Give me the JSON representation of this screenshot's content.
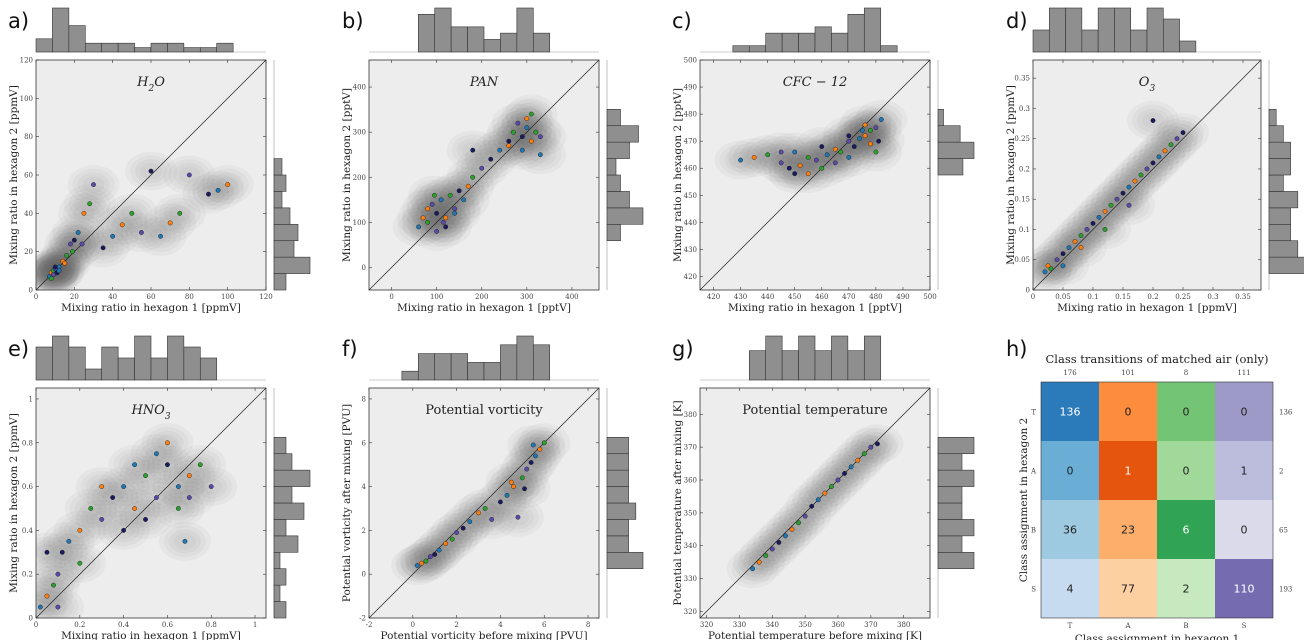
{
  "figure": {
    "panel_letters": [
      "a)",
      "b)",
      "c)",
      "d)",
      "e)",
      "f)",
      "g)",
      "h)"
    ]
  },
  "chart_data": [
    {
      "type": "scatter",
      "panel": "a)",
      "title": "H2O",
      "title_style": "italic-math",
      "xlabel": "Mixing ratio in hexagon 1 [ppmV]",
      "ylabel": "Mixing ratio in hexagon 2 [ppmV]",
      "xlim": [
        0,
        120
      ],
      "ylim": [
        0,
        120
      ],
      "xticks": [
        0,
        20,
        40,
        60,
        80,
        100,
        120
      ],
      "yticks": [
        0,
        20,
        40,
        60,
        80,
        100,
        120
      ],
      "x": [
        7,
        8,
        9,
        10,
        11,
        12,
        14,
        16,
        18,
        20,
        22,
        25,
        28,
        30,
        35,
        40,
        45,
        50,
        55,
        60,
        65,
        70,
        75,
        80,
        90,
        95,
        100,
        8,
        9,
        10,
        12,
        15,
        19,
        24
      ],
      "y": [
        7,
        9,
        10,
        11,
        9,
        12,
        15,
        18,
        24,
        26,
        30,
        40,
        45,
        55,
        22,
        28,
        34,
        40,
        30,
        62,
        28,
        35,
        40,
        60,
        50,
        52,
        55,
        6,
        8,
        12,
        10,
        14,
        20,
        24
      ]
    },
    {
      "type": "scatter",
      "panel": "b)",
      "title": "PAN",
      "title_style": "italic-math",
      "xlabel": "Mixing ratio in hexagon 1 [pptV]",
      "ylabel": "Mixing ratio in hexagon 2 [pptV]",
      "xlim": [
        -50,
        460
      ],
      "ylim": [
        -50,
        460
      ],
      "xticks": [
        0,
        100,
        200,
        300,
        400
      ],
      "yticks": [
        0,
        100,
        200,
        300,
        400
      ],
      "x": [
        60,
        70,
        80,
        90,
        100,
        110,
        120,
        130,
        140,
        150,
        160,
        170,
        180,
        200,
        220,
        240,
        260,
        270,
        280,
        290,
        300,
        310,
        320,
        330,
        260,
        290,
        300,
        310,
        100,
        120,
        140,
        80,
        95,
        115,
        180,
        330
      ],
      "y": [
        90,
        110,
        100,
        140,
        120,
        150,
        110,
        160,
        130,
        170,
        150,
        180,
        200,
        220,
        240,
        260,
        270,
        300,
        320,
        290,
        310,
        280,
        300,
        290,
        280,
        260,
        330,
        340,
        80,
        90,
        120,
        130,
        160,
        100,
        260,
        250
      ]
    },
    {
      "type": "scatter",
      "panel": "c)",
      "title": "CFC − 12",
      "title_style": "italic-math",
      "xlabel": "Mixing ratio in hexagon 1 [pptV]",
      "ylabel": "Mixing ratio in hexagon 2 [pptV]",
      "xlim": [
        415,
        500
      ],
      "ylim": [
        415,
        500
      ],
      "xticks": [
        420,
        430,
        440,
        450,
        460,
        470,
        480,
        490,
        500
      ],
      "yticks": [
        420,
        430,
        440,
        450,
        460,
        470,
        480,
        490,
        500
      ],
      "x": [
        430,
        435,
        440,
        445,
        448,
        450,
        452,
        455,
        458,
        460,
        462,
        465,
        467,
        470,
        472,
        474,
        476,
        478,
        480,
        481,
        482,
        455,
        460,
        465,
        470,
        475,
        478,
        480,
        445,
        450,
        470,
        476
      ],
      "y": [
        463,
        464,
        465,
        462,
        460,
        466,
        461,
        464,
        463,
        468,
        465,
        467,
        466,
        470,
        468,
        471,
        472,
        474,
        475,
        470,
        478,
        458,
        460,
        462,
        472,
        474,
        469,
        466,
        466,
        458,
        464,
        476
      ]
    },
    {
      "type": "scatter",
      "panel": "d)",
      "title": "O3",
      "title_style": "italic-math",
      "xlabel": "Mixing ratio in hexagon 1 [ppmV]",
      "ylabel": "Mixing ratio in hexagon 2 [ppmV]",
      "xlim": [
        0,
        0.38
      ],
      "ylim": [
        0,
        0.38
      ],
      "xticks": [
        0.0,
        0.05,
        0.1,
        0.15,
        0.2,
        0.25,
        0.3,
        0.35
      ],
      "yticks": [
        0.0,
        0.05,
        0.1,
        0.15,
        0.2,
        0.25,
        0.3,
        0.35
      ],
      "x": [
        0.02,
        0.025,
        0.03,
        0.04,
        0.05,
        0.06,
        0.07,
        0.08,
        0.09,
        0.1,
        0.11,
        0.12,
        0.13,
        0.14,
        0.15,
        0.16,
        0.17,
        0.18,
        0.19,
        0.2,
        0.21,
        0.22,
        0.23,
        0.24,
        0.25,
        0.05,
        0.08,
        0.12,
        0.16,
        0.2
      ],
      "y": [
        0.03,
        0.04,
        0.035,
        0.05,
        0.06,
        0.07,
        0.08,
        0.09,
        0.1,
        0.11,
        0.12,
        0.13,
        0.14,
        0.15,
        0.16,
        0.17,
        0.18,
        0.19,
        0.2,
        0.21,
        0.22,
        0.23,
        0.24,
        0.25,
        0.26,
        0.04,
        0.07,
        0.1,
        0.14,
        0.28
      ]
    },
    {
      "type": "scatter",
      "panel": "e)",
      "title": "HNO3",
      "title_style": "italic-math",
      "xlabel": "Mixing ratio in hexagon 1 [ppmV]",
      "ylabel": "Mixing ratio in hexagon 2 [ppmV]",
      "xlim": [
        0,
        1.05
      ],
      "ylim": [
        0,
        1.05
      ],
      "xticks": [
        0.0,
        0.2,
        0.4,
        0.6,
        0.8,
        1.0
      ],
      "yticks": [
        0.0,
        0.2,
        0.4,
        0.6,
        0.8,
        1.0
      ],
      "x": [
        0.02,
        0.05,
        0.08,
        0.1,
        0.12,
        0.15,
        0.2,
        0.25,
        0.3,
        0.35,
        0.4,
        0.45,
        0.5,
        0.55,
        0.6,
        0.65,
        0.7,
        0.75,
        0.8,
        0.5,
        0.55,
        0.6,
        0.65,
        0.7,
        0.4,
        0.45,
        0.3,
        0.2,
        0.1,
        0.05,
        0.68
      ],
      "y": [
        0.05,
        0.1,
        0.15,
        0.2,
        0.3,
        0.35,
        0.4,
        0.5,
        0.45,
        0.55,
        0.6,
        0.5,
        0.65,
        0.55,
        0.7,
        0.6,
        0.65,
        0.7,
        0.6,
        0.45,
        0.75,
        0.8,
        0.5,
        0.55,
        0.4,
        0.7,
        0.6,
        0.25,
        0.05,
        0.3,
        0.35
      ]
    },
    {
      "type": "scatter",
      "panel": "f)",
      "title": "Potential vorticity",
      "title_style": "roman",
      "xlabel": "Potential vorticity before mixing [PVU]",
      "ylabel": "Potential vorticity after mixing [PVU]",
      "xlim": [
        -2,
        8.5
      ],
      "ylim": [
        -2,
        8.5
      ],
      "xticks": [
        -2,
        0,
        2,
        4,
        6,
        8
      ],
      "yticks": [
        -2,
        0,
        2,
        4,
        6,
        8
      ],
      "x": [
        0.2,
        0.4,
        0.6,
        0.8,
        1.0,
        1.2,
        1.5,
        1.8,
        2.0,
        2.3,
        2.6,
        3.0,
        3.3,
        3.6,
        4.0,
        4.3,
        4.6,
        5.0,
        5.2,
        5.4,
        5.6,
        5.8,
        6.0,
        4.8,
        5.1,
        5.5,
        4.5
      ],
      "y": [
        0.4,
        0.5,
        0.6,
        0.8,
        0.9,
        1.1,
        1.4,
        1.6,
        1.9,
        2.1,
        2.4,
        2.8,
        3.0,
        2.5,
        3.3,
        3.6,
        4.0,
        4.4,
        4.8,
        5.1,
        5.4,
        5.7,
        6.0,
        2.6,
        3.9,
        5.9,
        4.2
      ]
    },
    {
      "type": "scatter",
      "panel": "g)",
      "title": "Potential temperature",
      "title_style": "roman",
      "xlabel": "Potential temperature before mixing [K]",
      "ylabel": "Potential temperature after mixing [K]",
      "xlim": [
        318,
        388
      ],
      "ylim": [
        318,
        388
      ],
      "xticks": [
        320,
        330,
        340,
        350,
        360,
        370,
        380
      ],
      "yticks": [
        320,
        330,
        340,
        350,
        360,
        370,
        380
      ],
      "x": [
        334,
        336,
        338,
        340,
        342,
        344,
        346,
        348,
        350,
        352,
        354,
        356,
        358,
        360,
        362,
        364,
        366,
        368,
        370,
        372
      ],
      "y": [
        333,
        335,
        337,
        339,
        341,
        343,
        345,
        347,
        349,
        352,
        354,
        356,
        358,
        360,
        362,
        364,
        366,
        368,
        370,
        371
      ]
    },
    {
      "type": "heatmap",
      "panel": "h)",
      "title": "Class transitions of matched air (only)",
      "xlabel": "Class assignment in hexagon 1",
      "ylabel": "Class assignment in hexagon 2",
      "categories": [
        "T",
        "A",
        "B",
        "S"
      ],
      "column_totals": [
        "176",
        "101",
        "8",
        "111"
      ],
      "row_totals": [
        "136",
        "2",
        "65",
        "193"
      ],
      "values": [
        [
          136,
          0,
          0,
          0
        ],
        [
          0,
          1,
          0,
          1
        ],
        [
          36,
          23,
          6,
          0
        ],
        [
          4,
          77,
          2,
          110
        ]
      ],
      "cell_colors": [
        [
          "#2b7bba",
          "#fd8d3c",
          "#74c476",
          "#9e9ac8"
        ],
        [
          "#6aaed6",
          "#e6550d",
          "#a1d99b",
          "#bcbddc"
        ],
        [
          "#9ecae1",
          "#fdae6b",
          "#31a354",
          "#dadaeb"
        ],
        [
          "#c6dbef",
          "#fdd0a2",
          "#c7e9c0",
          "#756bb1"
        ]
      ]
    }
  ],
  "style": {
    "axes_bg": "#ededed",
    "kde_fill": "#5f5f5f",
    "hist_fill": "#8f8f8f",
    "class_colors": {
      "T": "#1f77b4",
      "A": "#ff7f0e",
      "B": "#2ca02c",
      "S": "#5a4bab"
    },
    "dark_marker": "#1a1a5e"
  }
}
